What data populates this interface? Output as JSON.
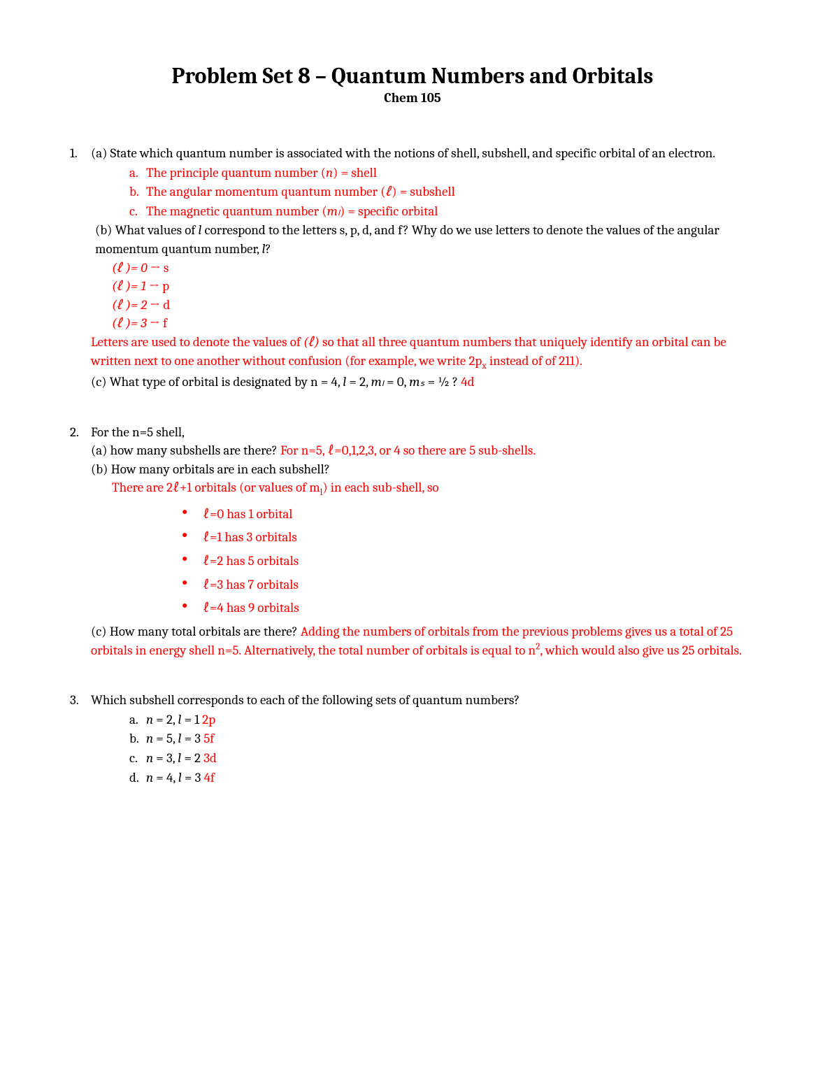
{
  "title": "Problem Set 8 – Quantum Numbers and Orbitals",
  "subtitle": "Chem 105",
  "colors": {
    "text": "#000000",
    "answer": "#ff0000",
    "background": "#ffffff"
  },
  "typography": {
    "title_fontsize": 32,
    "subtitle_fontsize": 19,
    "body_fontsize": 19,
    "font_family": "Cambria, Georgia, serif"
  },
  "problems": [
    {
      "number": "1.",
      "parts": {
        "a_question": "(a) State which quantum number is associated with the notions of shell, subshell, and specific orbital of an electron.",
        "a_answers": [
          {
            "marker": "a.",
            "text": "The principle quantum number (",
            "var": "n",
            "suffix": ") = shell"
          },
          {
            "marker": "b.",
            "text": "The angular momentum quantum number (",
            "var": "ℓ",
            "suffix": ") = subshell"
          },
          {
            "marker": "c.",
            "text": "The magnetic quantum number (",
            "var": "mₗ",
            "suffix": ") = specific orbital"
          }
        ],
        "b_question_pre": "(b) What values of ",
        "b_question_var": "l",
        "b_question_mid": " correspond to the letters s, p, d, and f? Why do we use letters to denote the values of the angular momentum quantum number, ",
        "b_question_var2": "l",
        "b_question_post": "?",
        "b_answers": [
          {
            "eq": "(ℓ )= 0 ",
            "arrow": true,
            "letter": " s"
          },
          {
            "eq": "(ℓ )= 1 ",
            "arrow": true,
            "letter": " p"
          },
          {
            "eq": "(ℓ )= 2 ",
            "arrow": true,
            "letter": " d"
          },
          {
            "eq": "(ℓ )= 3 ",
            "arrow": true,
            "letter": " f"
          }
        ],
        "b_explanation_pre": "Letters are used to denote the values of ",
        "b_explanation_var": "(ℓ)",
        "b_explanation_mid": " so that all three quantum numbers that uniquely identify an orbital can be written next to one another without confusion (for example, we write 2p",
        "b_explanation_sub": "x",
        "b_explanation_post": " instead of of 211).",
        "c_question": "(c) What type of orbital is designated by n = 4, ",
        "c_var1": "l",
        "c_mid1": " = 2, ",
        "c_var2": "mₗ",
        "c_mid2": " = 0, ",
        "c_var3": "mₛ",
        "c_mid3": " = ½ ?  ",
        "c_answer": "4d"
      }
    },
    {
      "number": "2.",
      "intro": "For the n=5 shell,",
      "parts": {
        "a_question": "(a) how many subshells are there? ",
        "a_answer": "For n=5, ℓ=0,1,2,3, or 4 so there are 5 sub-shells.",
        "b_question": "(b) How many orbitals are in each subshell?",
        "b_intro": "There are 2ℓ+1 orbitals (or values of m",
        "b_intro_sub": "l",
        "b_intro_post": ") in each sub-shell, so",
        "b_bullets": [
          "ℓ=0 has 1 orbital",
          "ℓ=1 has 3 orbitals",
          "ℓ=2 has 5 orbitals",
          "ℓ=3 has 7 orbitals",
          "ℓ=4 has 9 orbitals"
        ],
        "c_question": "(c) How many total orbitals are there? ",
        "c_answer_pre": "Adding the numbers of orbitals from the previous problems gives us a total of 25 orbitals in energy shell n=5. Alternatively, the total number of orbitals is equal to n",
        "c_answer_sup": "2",
        "c_answer_post": ", which would also give us 25 orbitals."
      }
    },
    {
      "number": "3.",
      "question": "Which subshell corresponds to each of the following sets of quantum numbers?",
      "items": [
        {
          "marker": "a.",
          "q_pre": "n",
          "q_mid": " = 2, ",
          "q_var": "l",
          "q_post": " = 1  ",
          "answer": "2p"
        },
        {
          "marker": "b.",
          "q_pre": "n",
          "q_mid": " = 5, ",
          "q_var": "l",
          "q_post": " = 3  ",
          "answer": "5f"
        },
        {
          "marker": "c.",
          "q_pre": "n",
          "q_mid": " = 3, ",
          "q_var": "l",
          "q_post": " = 2  ",
          "answer": "3d"
        },
        {
          "marker": "d.",
          "q_pre": "n",
          "q_mid": " = 4, ",
          "q_var": "l",
          "q_post": " = 3  ",
          "answer": "4f"
        }
      ]
    }
  ]
}
